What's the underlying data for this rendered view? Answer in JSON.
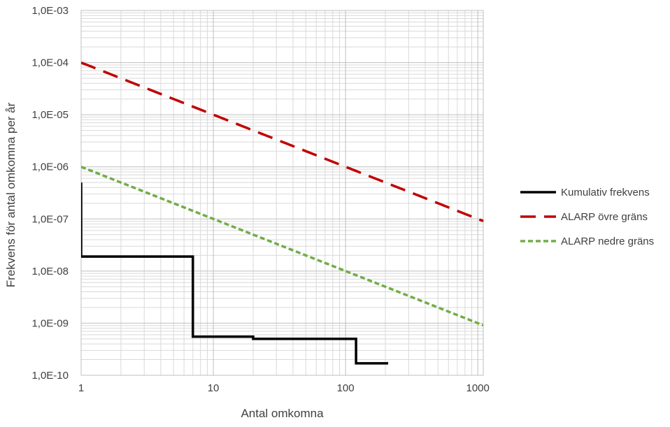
{
  "chart_data": {
    "type": "line",
    "title": "",
    "xlabel": "Antal omkomna",
    "ylabel": "Frekvens för antal omkomna per år",
    "x_scale": "log",
    "y_scale": "log",
    "xlim": [
      1,
      1100
    ],
    "ylim": [
      1e-10,
      0.001
    ],
    "x_tick_values": [
      1,
      10,
      100,
      1000
    ],
    "x_tick_labels": [
      "1",
      "10",
      "100",
      "1000"
    ],
    "y_tick_values": [
      1e-10,
      1e-09,
      1e-08,
      1e-07,
      1e-06,
      1e-05,
      0.0001,
      0.001
    ],
    "y_tick_labels": [
      "1,0E-10",
      "1,0E-09",
      "1,0E-08",
      "1,0E-07",
      "1,0E-06",
      "1,0E-05",
      "1,0E-04",
      "1,0E-03"
    ],
    "grid": true,
    "legend_position": "right",
    "series": [
      {
        "name": "Kumulativ frekvens",
        "style": "step",
        "color": "#000000",
        "points": [
          [
            1,
            5e-07
          ],
          [
            1,
            1.9e-08
          ],
          [
            7,
            1.9e-08
          ],
          [
            7,
            5.5e-10
          ],
          [
            20,
            5.5e-10
          ],
          [
            20,
            5e-10
          ],
          [
            120,
            5e-10
          ],
          [
            120,
            1.7e-10
          ],
          [
            210,
            1.7e-10
          ]
        ]
      },
      {
        "name": "ALARP övre gräns",
        "style": "dashed",
        "color": "#c00000",
        "points": [
          [
            1,
            0.0001
          ],
          [
            1100,
            9.1e-08
          ]
        ]
      },
      {
        "name": "ALARP nedre gräns",
        "style": "dotted",
        "color": "#70ad47",
        "points": [
          [
            1,
            1e-06
          ],
          [
            1100,
            9.1e-10
          ]
        ]
      }
    ]
  }
}
